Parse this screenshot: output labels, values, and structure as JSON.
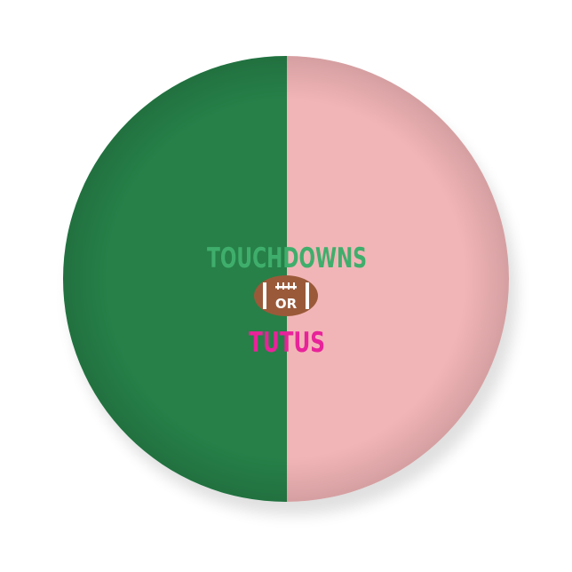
{
  "product": {
    "line1": "TOUCHDOWNS",
    "connector": "OR",
    "line2": "TUTUS"
  },
  "colors": {
    "left_half": "#268048",
    "right_half": "#f2b5b7",
    "line1_text": "#3fae6c",
    "line2_text": "#e8239a",
    "football": "#9a5a3a",
    "laces": "#ffffff"
  },
  "icons": {
    "center_emblem": "football-icon"
  }
}
